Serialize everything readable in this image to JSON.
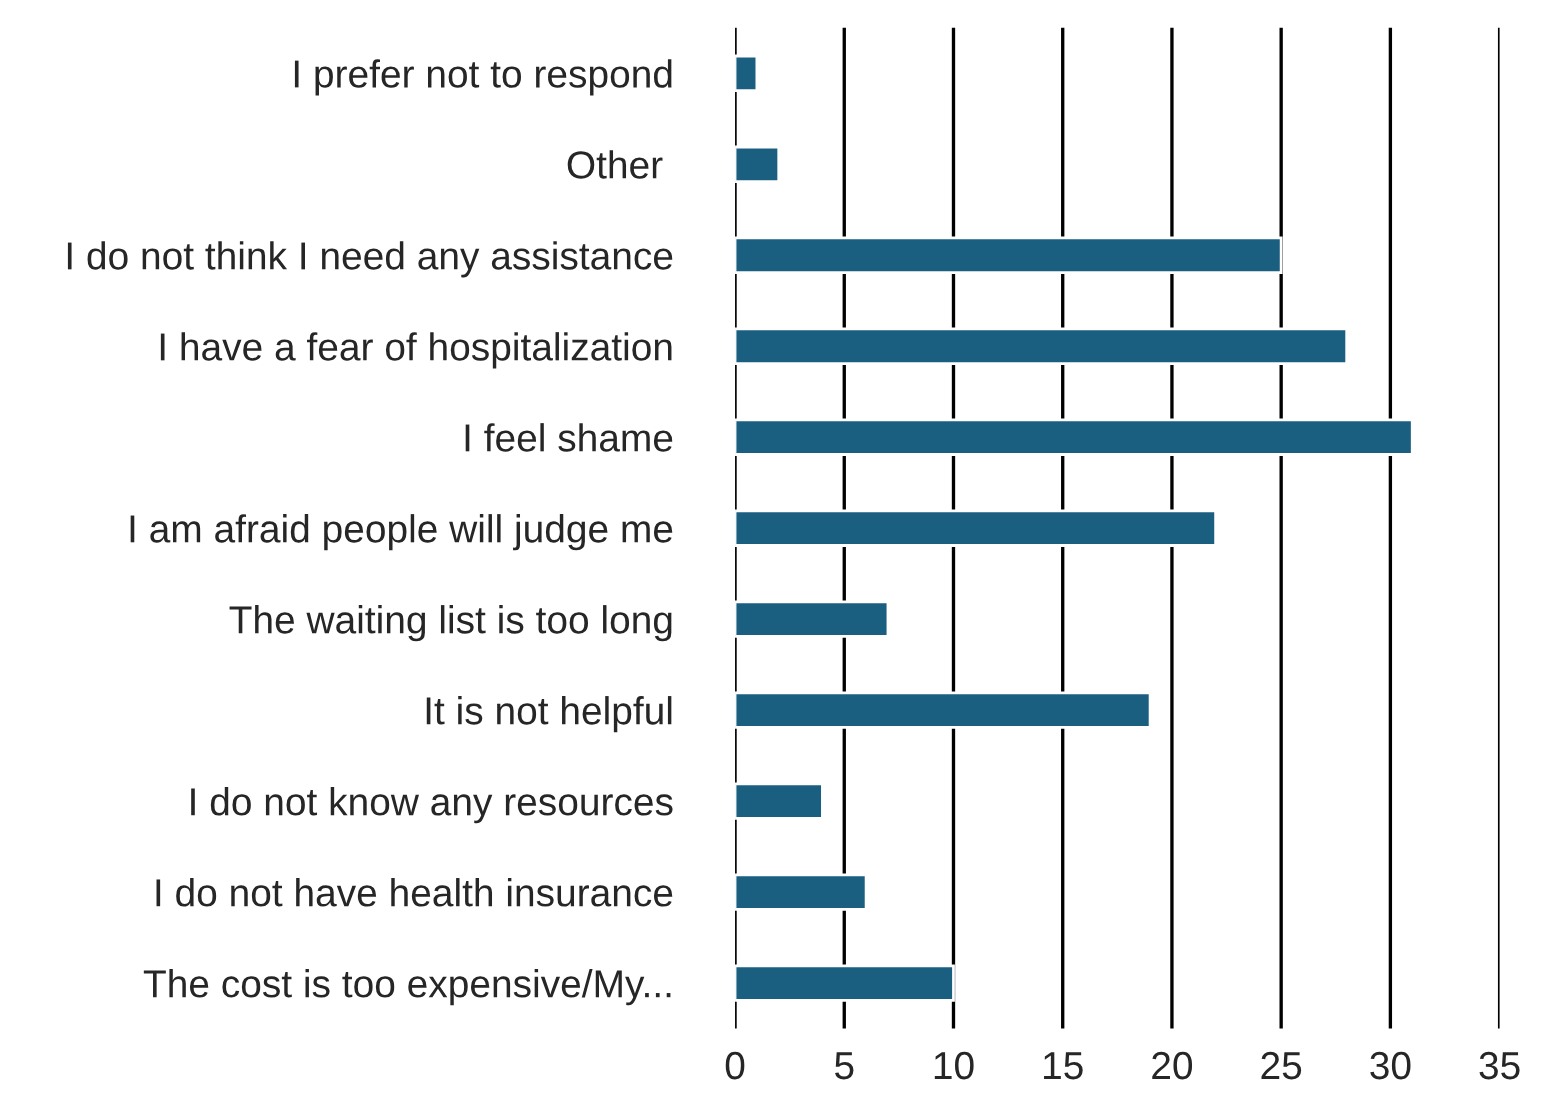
{
  "chart_data": {
    "type": "bar",
    "orientation": "horizontal",
    "categories": [
      "I prefer not to respond",
      "Other ",
      "I do not think I need any assistance",
      "I have a fear of hospitalization",
      "I feel shame",
      "I am afraid people will judge me",
      "The waiting list is too long",
      "It is not helpful",
      "I do not know any resources",
      "I do not have health insurance",
      "The cost is too expensive/My..."
    ],
    "values": [
      1,
      2,
      25,
      28,
      31,
      22,
      7,
      19,
      4,
      6,
      10
    ],
    "color": "#1a5e80",
    "xlim": [
      0,
      35
    ],
    "xticks": [
      0,
      5,
      10,
      15,
      20,
      25,
      30,
      35
    ],
    "grid": "x",
    "legend": false
  }
}
